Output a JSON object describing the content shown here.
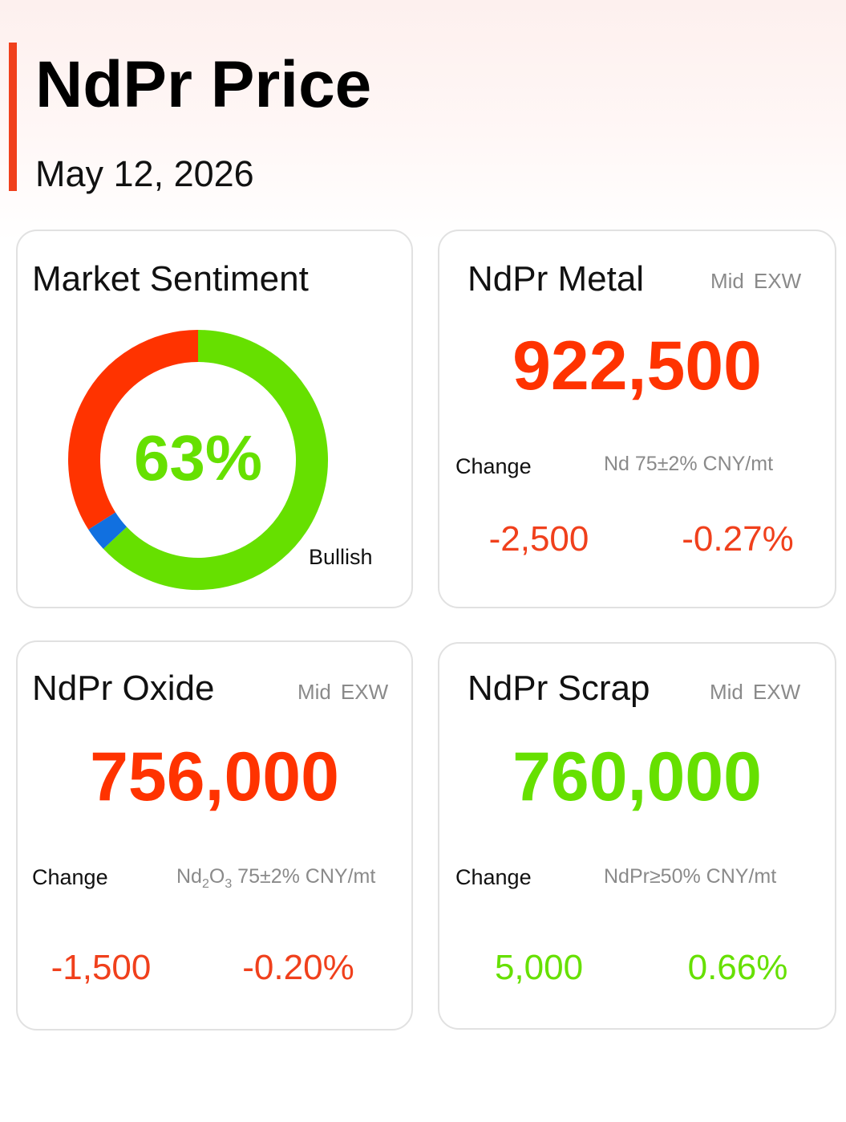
{
  "header": {
    "title": "NdPr Price",
    "date": "May 12, 2026"
  },
  "sentiment": {
    "title": "Market Sentiment",
    "percent_label": "63%",
    "label": "Bullish",
    "segments": [
      {
        "name": "bullish",
        "value": 63,
        "color": "#66e000"
      },
      {
        "name": "neutral",
        "value": 3,
        "color": "#1170e0"
      },
      {
        "name": "bearish",
        "value": 34,
        "color": "#ff3300"
      }
    ],
    "percent_color": "#66e000"
  },
  "metal": {
    "title": "NdPr Metal",
    "meta": [
      "Mid",
      "EXW"
    ],
    "price": "922,500",
    "price_color": "#ff3300",
    "change_label": "Change",
    "spec": "Nd 75±2% CNY/mt",
    "change_abs": "-2,500",
    "change_pct": "-0.27%",
    "change_color": "#f0401c"
  },
  "oxide": {
    "title": "NdPr Oxide",
    "meta": [
      "Mid",
      "EXW"
    ],
    "price": "756,000",
    "price_color": "#ff3300",
    "change_label": "Change",
    "spec_main": "Nd",
    "spec_sub1": "2",
    "spec_mid": "O",
    "spec_sub2": "3",
    "spec_rest": " 75±2% CNY/mt",
    "change_abs": "-1,500",
    "change_pct": "-0.20%",
    "change_color": "#f0401c"
  },
  "scrap": {
    "title": "NdPr Scrap",
    "meta": [
      "Mid",
      "EXW"
    ],
    "price": "760,000",
    "price_color": "#66e000",
    "change_label": "Change",
    "spec": "NdPr≥50% CNY/mt",
    "change_abs": "5,000",
    "change_pct": "0.66%",
    "change_color": "#66e000"
  }
}
